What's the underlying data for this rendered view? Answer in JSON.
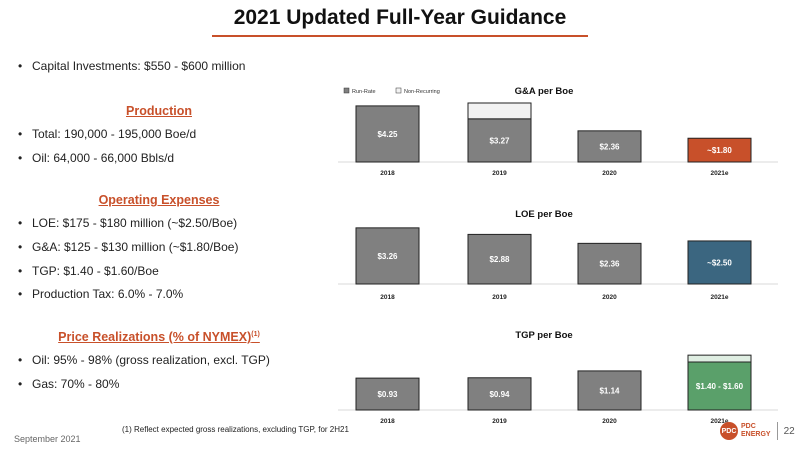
{
  "title": "2021 Updated Full-Year Guidance",
  "bullets_top": [
    "Capital Investments: $550 - $600 million"
  ],
  "production": {
    "heading": "Production",
    "items": [
      "Total: 190,000 - 195,000 Boe/d",
      "Oil: 64,000 - 66,000 Bbls/d"
    ]
  },
  "opex": {
    "heading": "Operating Expenses",
    "items": [
      "LOE: $175 - $180 million (~$2.50/Boe)",
      "G&A: $125 - $130 million (~$1.80/Boe)",
      "TGP: $1.40 - $1.60/Boe",
      "Production Tax: 6.0% - 7.0%"
    ]
  },
  "realizations": {
    "heading": "Price Realizations (% of NYMEX)",
    "heading_sup": "(1)",
    "items": [
      "Oil: 95% - 98% (gross realization, excl. TGP)",
      "Gas: 70% - 80%"
    ]
  },
  "footnote": "(1) Reflect expected gross realizations, excluding TGP, for 2H21",
  "date": "September 2021",
  "logo": {
    "mark": "PDC",
    "line1": "PDC",
    "line2": "ENERGY"
  },
  "page_number": "22",
  "colors": {
    "accent": "#c8502a",
    "bar_gray": "#808080",
    "loe_2021": "#3b6680",
    "tgp_2021": "#5aa06a",
    "nonrecurring": "#f2f2f2",
    "tgp_top": "#dfeee2"
  },
  "chart_data": [
    {
      "type": "bar",
      "title": "G&A per Boe",
      "legend": [
        "Run-Rate",
        "Non-Recurring"
      ],
      "legend_position": "top-left",
      "categories": [
        "2018",
        "2019",
        "2020",
        "2021e"
      ],
      "series": [
        {
          "name": "Run-Rate",
          "values": [
            4.25,
            3.27,
            2.36,
            1.8
          ]
        },
        {
          "name": "Non-Recurring",
          "values": [
            0,
            1.2,
            0,
            0
          ]
        }
      ],
      "labels": [
        "$4.25",
        "$3.27",
        "$2.36",
        "~$1.80"
      ],
      "highlight_color": "#c8502a",
      "ylim": [
        0,
        5
      ]
    },
    {
      "type": "bar",
      "title": "LOE per Boe",
      "categories": [
        "2018",
        "2019",
        "2020",
        "2021e"
      ],
      "values": [
        3.26,
        2.88,
        2.36,
        2.5
      ],
      "labels": [
        "$3.26",
        "$2.88",
        "$2.36",
        "~$2.50"
      ],
      "highlight_color": "#3b6680",
      "ylim": [
        0,
        3.6
      ]
    },
    {
      "type": "bar",
      "title": "TGP per Boe",
      "categories": [
        "2018",
        "2019",
        "2020",
        "2021e"
      ],
      "values": [
        0.93,
        0.94,
        1.14,
        1.4
      ],
      "range_top": [
        0,
        0,
        0,
        1.6
      ],
      "labels": [
        "$0.93",
        "$0.94",
        "$1.14",
        "$1.40 - $1.60"
      ],
      "highlight_color": "#5aa06a",
      "ylim": [
        0,
        1.75
      ]
    }
  ]
}
